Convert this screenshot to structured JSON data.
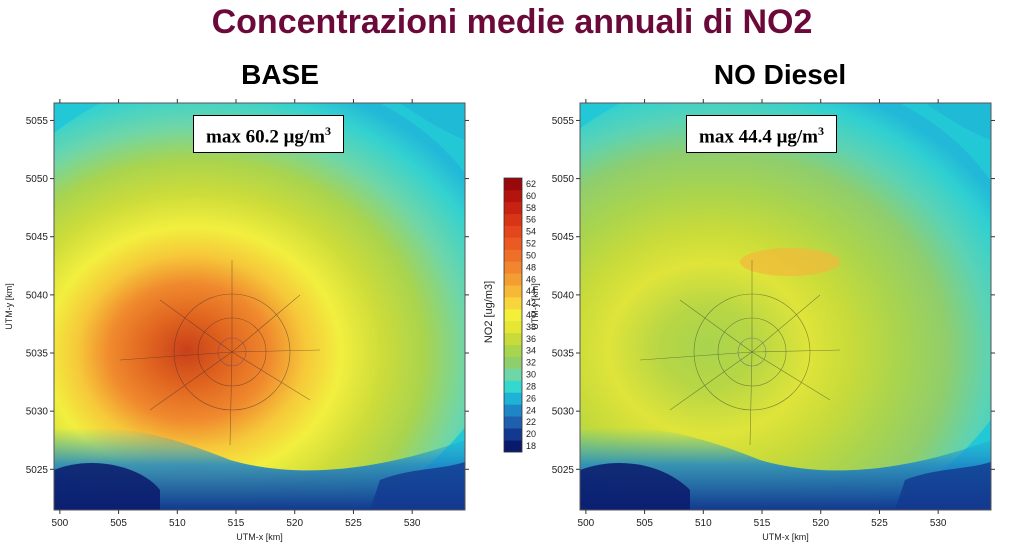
{
  "title": "Concentrazioni medie annuali di NO2",
  "panels": [
    {
      "subtitle": "BASE",
      "max_label": "max 60.2 μg/m",
      "max_unit_exp": "3",
      "max_value": 60.2
    },
    {
      "subtitle": "NO Diesel",
      "max_label": "max 44.4 μg/m",
      "max_unit_exp": "3",
      "max_value": 44.4
    }
  ],
  "axes": {
    "xlabel": "UTM-x [km]",
    "ylabel": "UTM-y [km]",
    "x_ticks": [
      "500",
      "505",
      "510",
      "515",
      "520",
      "525",
      "530"
    ],
    "y_ticks": [
      "5025",
      "5030",
      "5035",
      "5040",
      "5045",
      "5050",
      "5055"
    ],
    "x_range": [
      499.5,
      534.5
    ],
    "y_range": [
      5021.5,
      5056.5
    ]
  },
  "colorbar": {
    "title": "NO2 [ug/m3]",
    "levels": [
      "18",
      "20",
      "22",
      "24",
      "26",
      "28",
      "30",
      "32",
      "34",
      "36",
      "38",
      "40",
      "42",
      "44",
      "46",
      "48",
      "50",
      "52",
      "54",
      "56",
      "58",
      "60",
      "62"
    ],
    "colors": [
      "#0a1a6b",
      "#13388f",
      "#1f5fae",
      "#1e86c7",
      "#1eb3d6",
      "#34d8cf",
      "#6fd6a8",
      "#8fce6d",
      "#a9d44e",
      "#c8db3a",
      "#e6e635",
      "#f4f03a",
      "#f8d53a",
      "#f7b838",
      "#f49d33",
      "#f1862e",
      "#ee7028",
      "#ea5a22",
      "#e4471c",
      "#d83416",
      "#c82212",
      "#b3140e",
      "#99080a"
    ]
  },
  "chart_data": {
    "type": "heatmap",
    "title": "Concentrazioni medie annuali di NO2",
    "xlabel": "UTM-x [km]",
    "ylabel": "UTM-y [km]",
    "xlim": [
      499.5,
      534.5
    ],
    "ylim": [
      5021.5,
      5056.5
    ],
    "colorbar_label": "NO2 [ug/m3]",
    "colorbar_range": [
      18,
      62
    ],
    "series": [
      {
        "name": "BASE",
        "max": 60.2,
        "center": [
          515,
          5035
        ]
      },
      {
        "name": "NO Diesel",
        "max": 44.4,
        "center": [
          515,
          5035
        ]
      }
    ]
  }
}
